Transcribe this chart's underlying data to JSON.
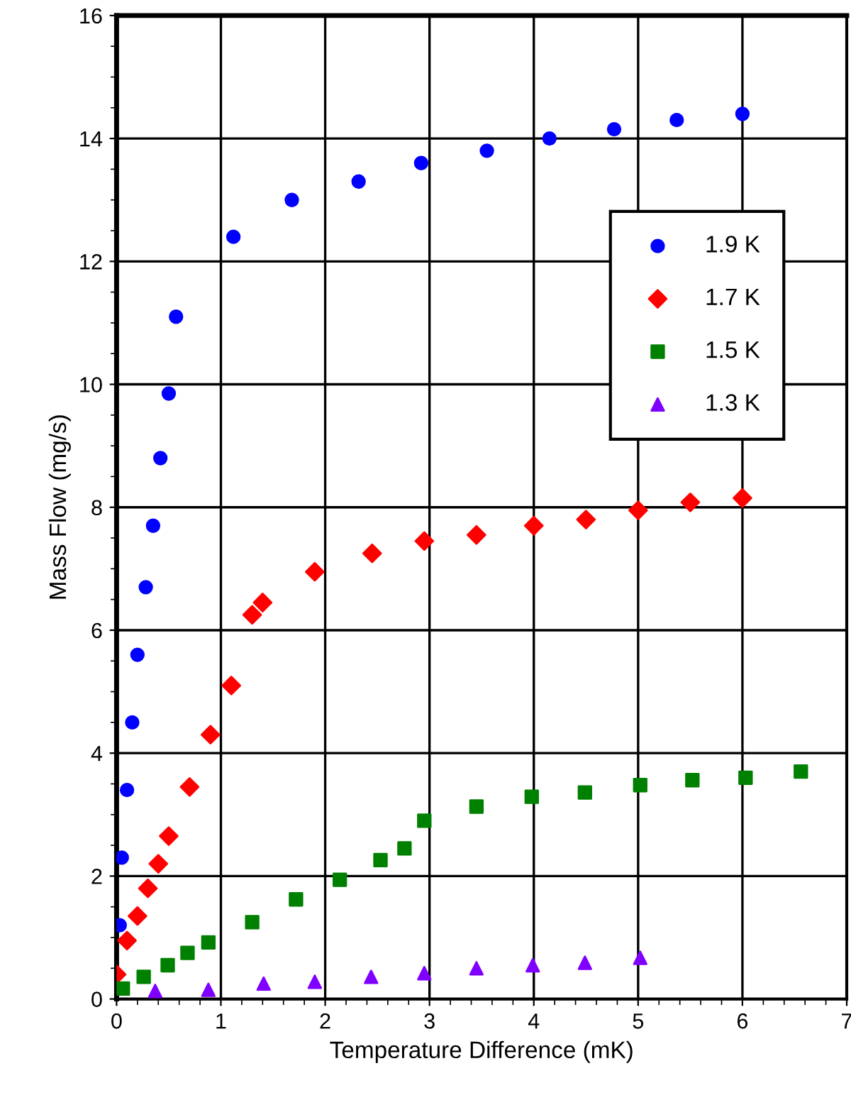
{
  "chart_data": {
    "type": "scatter",
    "xlabel": "Temperature Difference (mK)",
    "ylabel": "Mass Flow (mg/s)",
    "xlim": [
      0,
      7
    ],
    "ylim": [
      0,
      16
    ],
    "xticks": [
      0,
      1,
      2,
      3,
      4,
      5,
      6,
      7
    ],
    "yticks": [
      0,
      2,
      4,
      6,
      8,
      10,
      12,
      14,
      16
    ],
    "grid": true,
    "legend": "right",
    "series": [
      {
        "name": "1.9 K",
        "color": "#0000ff",
        "marker": "circle",
        "x": [
          0.03,
          0.05,
          0.1,
          0.15,
          0.2,
          0.28,
          0.35,
          0.42,
          0.5,
          0.57,
          1.12,
          1.68,
          2.32,
          2.92,
          3.55,
          4.15,
          4.77,
          5.37,
          6.0
        ],
        "values": [
          1.2,
          2.3,
          3.4,
          4.5,
          5.6,
          6.7,
          7.7,
          8.8,
          9.85,
          11.1,
          12.4,
          13.0,
          13.3,
          13.6,
          13.8,
          14.0,
          14.15,
          14.3,
          14.4
        ]
      },
      {
        "name": "1.7 K",
        "color": "#ff0000",
        "marker": "diamond",
        "x": [
          0.0,
          0.1,
          0.2,
          0.3,
          0.4,
          0.5,
          0.7,
          0.9,
          1.1,
          1.3,
          1.4,
          1.9,
          2.45,
          2.95,
          3.45,
          4.0,
          4.5,
          5.0,
          5.5,
          6.0
        ],
        "values": [
          0.4,
          0.95,
          1.35,
          1.8,
          2.2,
          2.65,
          3.45,
          4.3,
          5.1,
          6.25,
          6.45,
          6.95,
          7.25,
          7.45,
          7.55,
          7.7,
          7.8,
          7.95,
          8.08,
          8.15
        ]
      },
      {
        "name": "1.5 K",
        "color": "#008000",
        "marker": "square",
        "x": [
          0.06,
          0.26,
          0.49,
          0.68,
          0.88,
          1.3,
          1.72,
          2.14,
          2.53,
          2.76,
          2.95,
          3.45,
          3.98,
          4.49,
          5.02,
          5.52,
          6.03,
          6.56
        ],
        "values": [
          0.17,
          0.36,
          0.55,
          0.75,
          0.92,
          1.25,
          1.62,
          1.94,
          2.26,
          2.45,
          2.9,
          3.13,
          3.29,
          3.36,
          3.48,
          3.56,
          3.6,
          3.7
        ]
      },
      {
        "name": "1.3 K",
        "color": "#8000ff",
        "marker": "triangle",
        "x": [
          0.37,
          0.88,
          1.41,
          1.9,
          2.44,
          2.95,
          3.45,
          3.99,
          4.49,
          5.02
        ],
        "values": [
          0.13,
          0.15,
          0.25,
          0.28,
          0.36,
          0.42,
          0.5,
          0.55,
          0.59,
          0.67
        ]
      }
    ]
  }
}
